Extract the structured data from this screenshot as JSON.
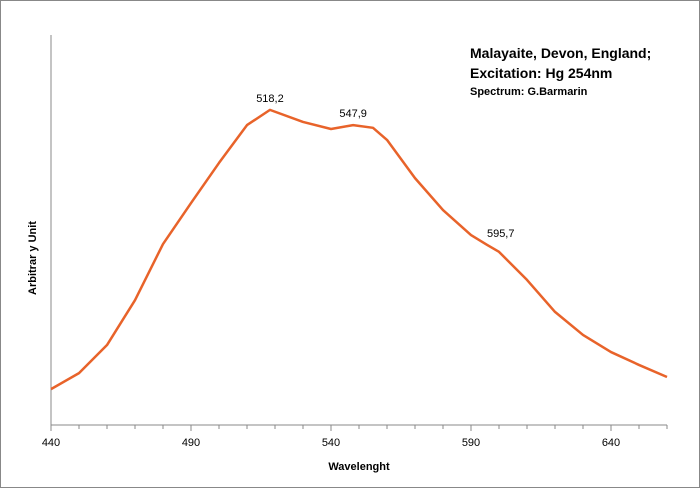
{
  "chart_data": {
    "type": "line",
    "title": [
      "Malayaite, Devon, England;",
      "Excitation: Hg 254nm"
    ],
    "subtitle": "Spectrum: G.Barmarin",
    "x_label": "Wavelenght",
    "y_label": "Arbitrar y Unit",
    "x": [
      440,
      450,
      460,
      470,
      480,
      490,
      500,
      510,
      518.2,
      530,
      540,
      547.9,
      555,
      560,
      570,
      580,
      590,
      595.7,
      600,
      610,
      620,
      630,
      640,
      650,
      660
    ],
    "series": [
      {
        "name": "Malayaite",
        "color": "#e8632a",
        "values": [
          9.2,
          13.3,
          20.5,
          32.0,
          46.4,
          56.9,
          67.2,
          76.9,
          80.8,
          77.7,
          75.9,
          76.9,
          76.2,
          73.1,
          63.3,
          55.1,
          48.7,
          46.2,
          44.4,
          37.2,
          29.0,
          23.1,
          18.7,
          15.4,
          12.3
        ]
      }
    ],
    "xlim": [
      440,
      660
    ],
    "ylim": [
      0,
      100
    ],
    "xticks": [
      440,
      490,
      540,
      590,
      640
    ],
    "x_minor_ticks": [
      450,
      460,
      470,
      480,
      500,
      510,
      520,
      530,
      550,
      560,
      570,
      580,
      600,
      610,
      620,
      630,
      650,
      660
    ],
    "annotations": [
      {
        "text": "518,2",
        "x": 518.2,
        "y": 80.8
      },
      {
        "text": "547,9",
        "x": 547.9,
        "y": 76.9
      },
      {
        "text": "595,7",
        "x": 595.7,
        "y": 46.2
      }
    ]
  }
}
